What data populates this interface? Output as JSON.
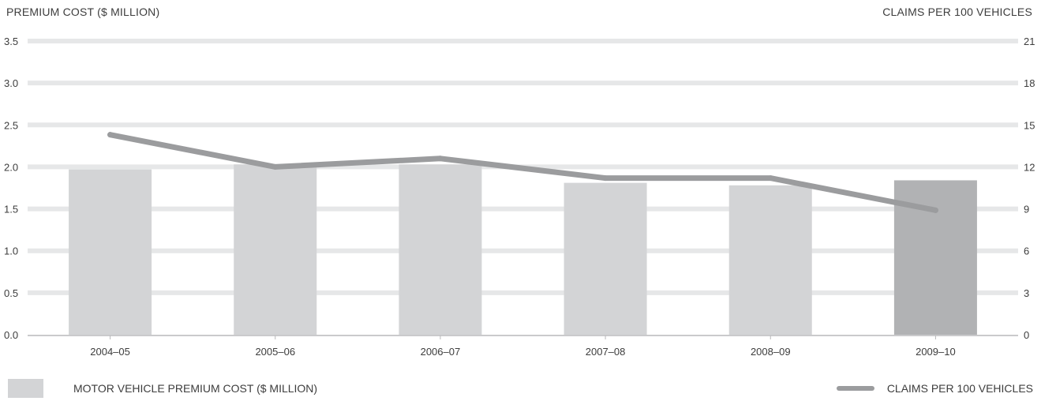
{
  "chart_data": {
    "type": "bar",
    "categories": [
      "2004–05",
      "2005–06",
      "2006–07",
      "2007–08",
      "2008–09",
      "2009–10"
    ],
    "series": [
      {
        "name": "MOTOR VEHICLE PREMIUM COST ($ MILLION)",
        "type": "bar",
        "axis": "left",
        "values": [
          1.97,
          2.03,
          2.03,
          1.81,
          1.78,
          1.84
        ],
        "highlight_index": 5
      },
      {
        "name": "CLAIMS PER 100 VEHICLES",
        "type": "line",
        "axis": "right",
        "values": [
          14.3,
          12.0,
          12.6,
          11.2,
          11.2,
          8.9
        ]
      }
    ],
    "y_left": {
      "label": "PREMIUM COST ($ MILLION)",
      "ylim": [
        0,
        3.5
      ],
      "ticks": [
        "0.0",
        "0.5",
        "1.0",
        "1.5",
        "2.0",
        "2.5",
        "3.0",
        "3.5"
      ]
    },
    "y_right": {
      "label": "CLAIMS PER 100 VEHICLES",
      "ylim": [
        0,
        21
      ],
      "ticks": [
        "0",
        "3",
        "6",
        "9",
        "12",
        "15",
        "18",
        "21"
      ]
    },
    "grid": true,
    "legend_position": "bottom",
    "colors": {
      "bar": "#d3d4d6",
      "bar_highlight": "#b1b2b4",
      "line": "#9b9c9e",
      "grid": "#e6e7e8"
    }
  }
}
